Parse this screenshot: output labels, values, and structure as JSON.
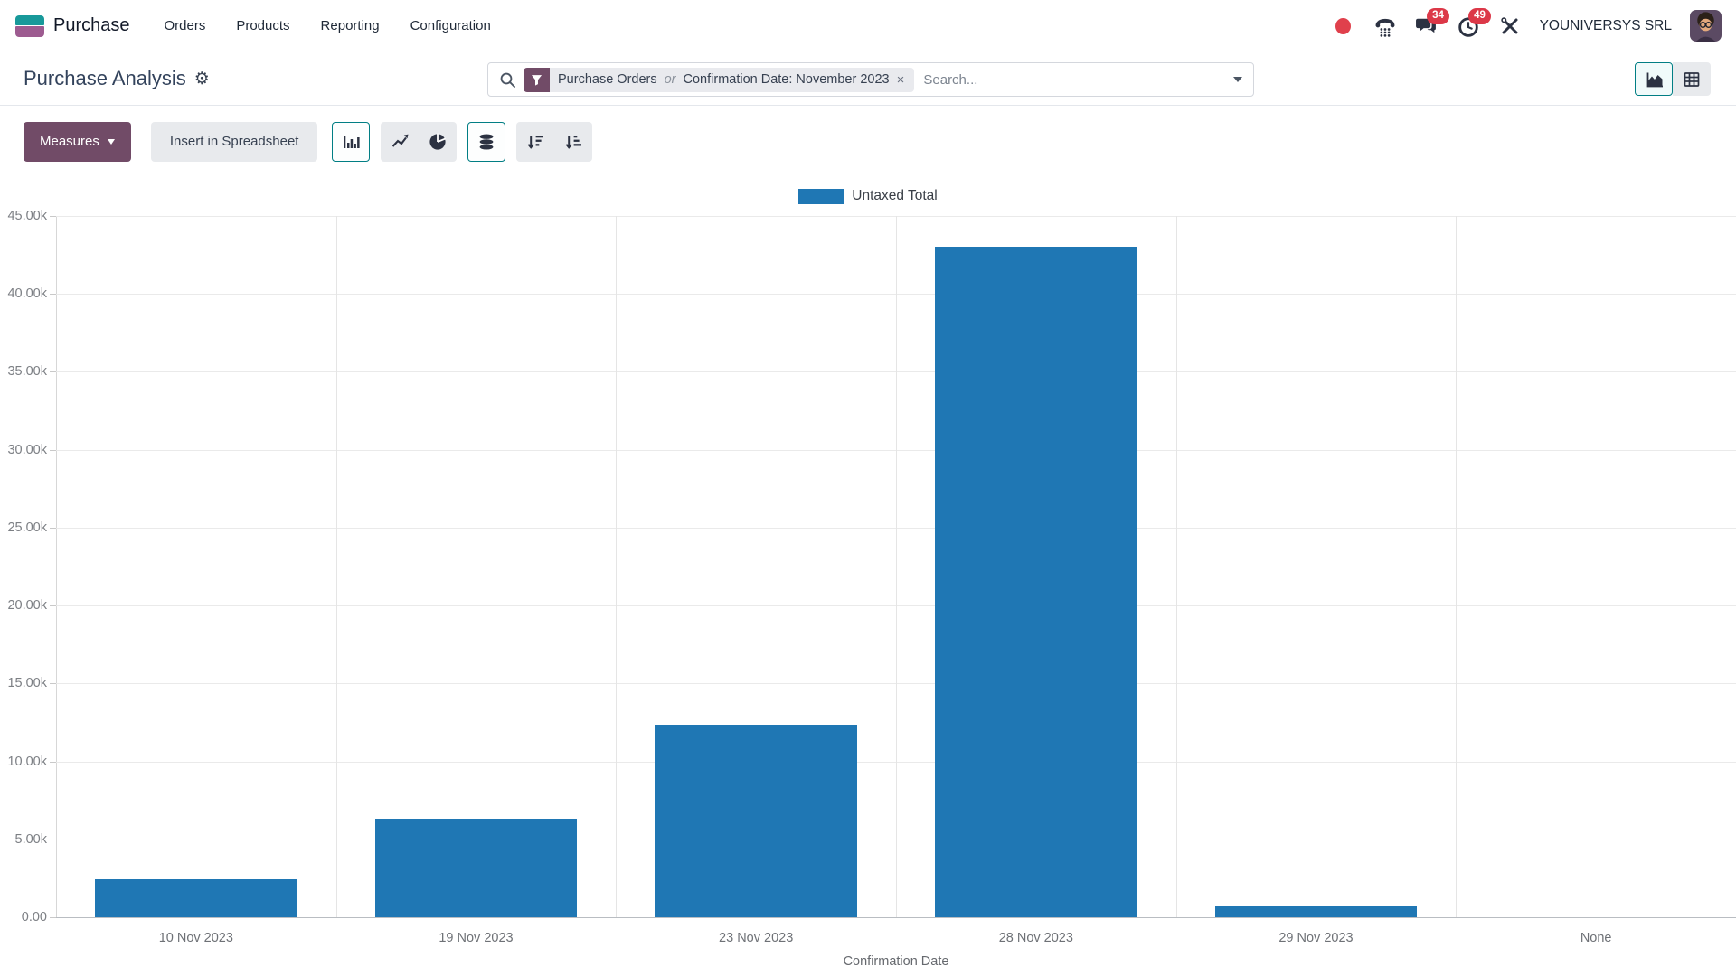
{
  "navbar": {
    "app_name": "Purchase",
    "menus": [
      "Orders",
      "Products",
      "Reporting",
      "Configuration"
    ],
    "systray": {
      "message_count": "34",
      "activity_count": "49",
      "company": "YOUNIVERSYS SRL"
    }
  },
  "control_panel": {
    "title": "Purchase Analysis",
    "gear_glyph": "⚙",
    "search": {
      "facet_value_1": "Purchase Orders",
      "facet_connector": "or",
      "facet_value_2": "Confirmation Date: November 2023",
      "facet_remove_glyph": "×",
      "placeholder": "Search..."
    }
  },
  "toolbar": {
    "measures_label": "Measures",
    "insert_spreadsheet_label": "Insert in Spreadsheet",
    "chart_type_buttons": [
      {
        "name": "bar-chart",
        "active": true
      },
      {
        "name": "line-chart",
        "active": false
      },
      {
        "name": "pie-chart",
        "active": false
      },
      {
        "name": "stacked",
        "active": true
      },
      {
        "name": "sort-descending",
        "active": false
      },
      {
        "name": "sort-ascending",
        "active": false
      }
    ],
    "view_switcher": [
      {
        "name": "graph-view",
        "active": true
      },
      {
        "name": "pivot-view",
        "active": false
      }
    ]
  },
  "chart_data": {
    "type": "bar",
    "title": "",
    "legend": [
      {
        "label": "Untaxed Total",
        "color": "#1f77b4"
      }
    ],
    "legend_position": "top",
    "categories": [
      "10 Nov 2023",
      "19 Nov 2023",
      "23 Nov 2023",
      "28 Nov 2023",
      "29 Nov 2023",
      "None"
    ],
    "series": [
      {
        "name": "Untaxed Total",
        "color": "#1f77b4",
        "values": [
          2430,
          6310,
          12340,
          43050,
          710,
          0
        ]
      }
    ],
    "xlabel": "Confirmation Date",
    "ylabel": "",
    "ylim": [
      0,
      45000
    ],
    "yticks": [
      0,
      5000,
      10000,
      15000,
      20000,
      25000,
      30000,
      35000,
      40000,
      45000
    ],
    "ytick_labels": [
      "0.00",
      "5.00k",
      "10.00k",
      "15.00k",
      "20.00k",
      "25.00k",
      "30.00k",
      "35.00k",
      "40.00k",
      "45.00k"
    ],
    "grid": true
  },
  "colors": {
    "bar_blue": "#1f77b4",
    "accent_teal": "#017e84",
    "primary_purple": "#714B67",
    "badge_red": "#dc3848",
    "logo_teal": "#18999a",
    "logo_purple": "#9d5b90"
  }
}
